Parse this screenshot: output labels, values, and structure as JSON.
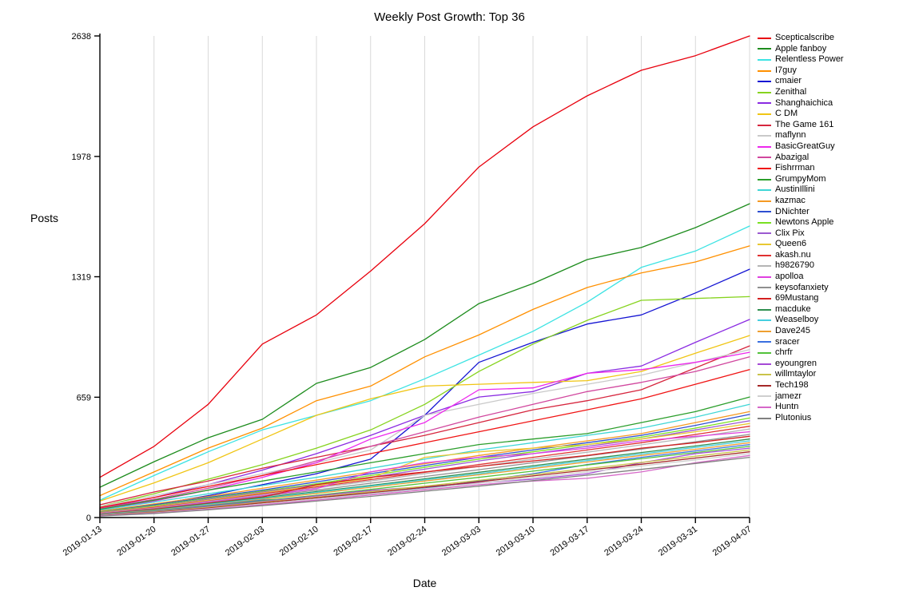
{
  "chart_data": {
    "type": "line",
    "title": "Weekly Post Growth: Top 36",
    "xlabel": "Date",
    "ylabel": "Posts",
    "x": [
      "2019-01-13",
      "2019-01-20",
      "2019-01-27",
      "2019-02-03",
      "2019-02-10",
      "2019-02-17",
      "2019-02-24",
      "2019-03-03",
      "2019-03-10",
      "2019-03-17",
      "2019-03-24",
      "2019-03-31",
      "2019-04-07"
    ],
    "ylim": [
      0,
      2638
    ],
    "yticks": [
      0,
      659,
      1319,
      1978,
      2638
    ],
    "grid": "vertical-only",
    "legend_position": "right",
    "series": [
      {
        "name": "Scepticalscribe",
        "color": "#e8000d",
        "values": [
          220,
          390,
          620,
          950,
          1110,
          1350,
          1610,
          1920,
          2140,
          2310,
          2450,
          2530,
          2638
        ]
      },
      {
        "name": "Apple fanboy",
        "color": "#1d8c1d",
        "values": [
          166,
          306,
          437,
          538,
          735,
          822,
          975,
          1172,
          1282,
          1413,
          1479,
          1588,
          1719
        ]
      },
      {
        "name": "Relentless Power",
        "color": "#3de3e3",
        "values": [
          95,
          230,
          360,
          480,
          560,
          640,
          760,
          890,
          1020,
          1180,
          1370,
          1460,
          1597
        ]
      },
      {
        "name": "I7guy",
        "color": "#ff9000",
        "values": [
          120,
          250,
          380,
          490,
          640,
          720,
          880,
          1000,
          1140,
          1260,
          1340,
          1400,
          1488
        ]
      },
      {
        "name": "cmaier",
        "color": "#1515d3",
        "values": [
          30,
          70,
          120,
          180,
          240,
          320,
          560,
          850,
          960,
          1060,
          1110,
          1230,
          1360
        ]
      },
      {
        "name": "Zenithal",
        "color": "#86d31e",
        "values": [
          60,
          130,
          210,
          290,
          380,
          480,
          620,
          800,
          950,
          1080,
          1190,
          1200,
          1210
        ]
      },
      {
        "name": "Shanghaichica",
        "color": "#8a2be2",
        "values": [
          50,
          110,
          180,
          260,
          350,
          450,
          560,
          660,
          690,
          790,
          830,
          960,
          1085
        ]
      },
      {
        "name": "C DM",
        "color": "#f0c514",
        "values": [
          90,
          190,
          300,
          430,
          560,
          650,
          720,
          730,
          740,
          750,
          800,
          900,
          997
        ]
      },
      {
        "name": "The Game 161",
        "color": "#d6263e",
        "values": [
          70,
          140,
          200,
          270,
          330,
          390,
          450,
          520,
          590,
          640,
          700,
          820,
          940
        ]
      },
      {
        "name": "maflynn",
        "color": "#c9c9c9",
        "values": [
          60,
          120,
          180,
          240,
          300,
          370,
          560,
          620,
          680,
          730,
          780,
          850,
          920
        ]
      },
      {
        "name": "BasicGreatGuy",
        "color": "#ed28ed",
        "values": [
          40,
          90,
          150,
          220,
          300,
          430,
          520,
          700,
          710,
          790,
          810,
          850,
          905
        ]
      },
      {
        "name": "Abazigal",
        "color": "#d1479e",
        "values": [
          50,
          100,
          160,
          230,
          310,
          390,
          470,
          550,
          620,
          690,
          740,
          800,
          880
        ]
      },
      {
        "name": "Fishrrman",
        "color": "#f01414",
        "values": [
          55,
          110,
          170,
          230,
          290,
          350,
          410,
          470,
          530,
          590,
          650,
          730,
          810
        ]
      },
      {
        "name": "GrumpyMom",
        "color": "#2b9e2b",
        "values": [
          45,
          95,
          150,
          200,
          250,
          300,
          350,
          400,
          430,
          460,
          520,
          580,
          660
        ]
      },
      {
        "name": "AustinIllini",
        "color": "#3fd6d6",
        "values": [
          40,
          85,
          130,
          175,
          220,
          270,
          320,
          370,
          410,
          450,
          490,
          550,
          620
        ]
      },
      {
        "name": "kazmac",
        "color": "#f59a23",
        "values": [
          35,
          75,
          115,
          160,
          205,
          250,
          295,
          340,
          380,
          420,
          460,
          520,
          580
        ]
      },
      {
        "name": "DNichter",
        "color": "#2e4fd1",
        "values": [
          30,
          70,
          110,
          150,
          195,
          240,
          285,
          330,
          370,
          410,
          450,
          505,
          565
        ]
      },
      {
        "name": "Newtons Apple",
        "color": "#79e021",
        "values": [
          30,
          65,
          105,
          145,
          185,
          230,
          275,
          320,
          360,
          400,
          440,
          490,
          545
        ]
      },
      {
        "name": "Clix Pix",
        "color": "#9b59d0",
        "values": [
          28,
          60,
          100,
          140,
          180,
          220,
          265,
          310,
          350,
          390,
          430,
          480,
          530
        ]
      },
      {
        "name": "Queen6",
        "color": "#e8c832",
        "values": [
          26,
          58,
          95,
          135,
          175,
          215,
          330,
          360,
          380,
          400,
          430,
          470,
          515
        ]
      },
      {
        "name": "akash.nu",
        "color": "#e03131",
        "values": [
          25,
          55,
          90,
          130,
          168,
          208,
          248,
          290,
          330,
          370,
          410,
          455,
          500
        ]
      },
      {
        "name": "h9826790",
        "color": "#b5b5b5",
        "values": [
          24,
          52,
          88,
          125,
          162,
          200,
          240,
          280,
          320,
          358,
          398,
          440,
          485
        ]
      },
      {
        "name": "apolloa",
        "color": "#e040e0",
        "values": [
          22,
          50,
          85,
          120,
          158,
          250,
          300,
          330,
          350,
          380,
          420,
          445,
          470
        ]
      },
      {
        "name": "keysofanxiety",
        "color": "#8f8f8f",
        "values": [
          20,
          48,
          80,
          115,
          150,
          188,
          225,
          262,
          300,
          338,
          375,
          415,
          455
        ]
      },
      {
        "name": "69Mustang",
        "color": "#d42020",
        "values": [
          20,
          45,
          78,
          112,
          180,
          220,
          250,
          280,
          310,
          340,
          380,
          410,
          445
        ]
      },
      {
        "name": "macduke",
        "color": "#2f8f4f",
        "values": [
          18,
          42,
          75,
          108,
          142,
          176,
          212,
          248,
          284,
          320,
          356,
          392,
          430
        ]
      },
      {
        "name": "Weaselboy",
        "color": "#45cfe0",
        "values": [
          18,
          40,
          72,
          104,
          138,
          172,
          206,
          240,
          276,
          312,
          348,
          384,
          420
        ]
      },
      {
        "name": "Dave245",
        "color": "#ef9f30",
        "values": [
          16,
          38,
          68,
          100,
          132,
          166,
          200,
          234,
          268,
          304,
          340,
          374,
          410
        ]
      },
      {
        "name": "sracer",
        "color": "#3a6fe0",
        "values": [
          15,
          36,
          65,
          96,
          110,
          130,
          160,
          200,
          240,
          290,
          330,
          365,
          400
        ]
      },
      {
        "name": "chrfr",
        "color": "#52c23a",
        "values": [
          14,
          34,
          62,
          92,
          122,
          154,
          188,
          220,
          254,
          288,
          322,
          356,
          390
        ]
      },
      {
        "name": "eyoungren",
        "color": "#a54ad6",
        "values": [
          13,
          32,
          60,
          88,
          118,
          148,
          170,
          190,
          210,
          240,
          300,
          350,
          380
        ]
      },
      {
        "name": "willmtaylor",
        "color": "#c9c34a",
        "values": [
          12,
          30,
          56,
          84,
          112,
          142,
          172,
          204,
          236,
          268,
          302,
          336,
          370
        ]
      },
      {
        "name": "Tech198",
        "color": "#a52828",
        "values": [
          11,
          28,
          52,
          80,
          108,
          136,
          166,
          196,
          228,
          260,
          292,
          326,
          360
        ]
      },
      {
        "name": "jamezr",
        "color": "#cfcfcf",
        "values": [
          10,
          26,
          48,
          75,
          102,
          130,
          158,
          188,
          218,
          250,
          282,
          316,
          350
        ]
      },
      {
        "name": "Huntn",
        "color": "#d668c8",
        "values": [
          10,
          24,
          45,
          70,
          96,
          124,
          152,
          180,
          200,
          215,
          250,
          300,
          340
        ]
      },
      {
        "name": "Plutonius",
        "color": "#808080",
        "values": [
          8,
          22,
          42,
          65,
          90,
          116,
          144,
          172,
          202,
          232,
          264,
          296,
          330
        ]
      }
    ]
  }
}
